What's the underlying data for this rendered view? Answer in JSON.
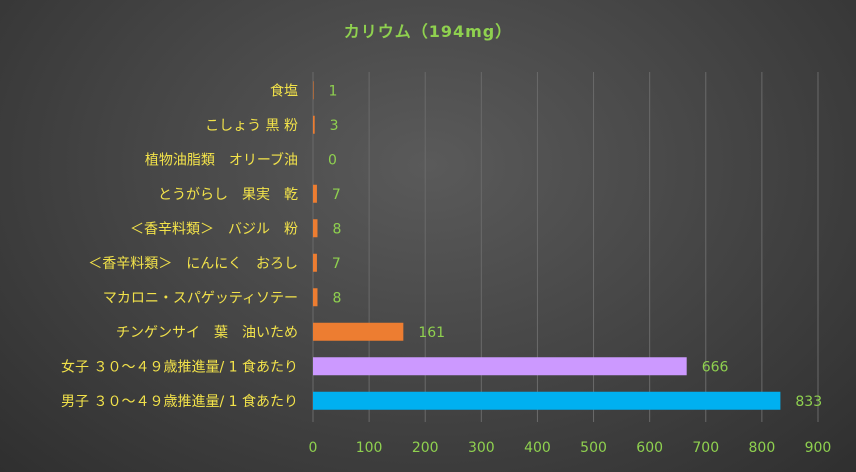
{
  "chart_data": {
    "type": "bar",
    "orientation": "horizontal",
    "title": "カリウム（194mg）",
    "categories": [
      "食塩",
      "こしょう 黒 粉",
      "植物油脂類　オリーブ油",
      "とうがらし　果実　乾",
      "＜香辛料類＞　バジル　粉",
      "＜香辛料類＞　にんにく　おろし",
      "マカロニ・スパゲッティソテー",
      "チンゲンサイ　葉　油いため",
      "女子 ３０～４９歳推進量/ 1 食あたり",
      "男子 ３０～４９歳推進量/ 1 食あたり"
    ],
    "values": [
      1,
      3,
      0,
      7,
      8,
      7,
      8,
      161,
      666,
      833
    ],
    "value_labels": [
      "1",
      "3",
      "0",
      "7",
      "8",
      "7",
      "8",
      "161",
      "666",
      "833"
    ],
    "bar_colors": [
      "#ed7d31",
      "#ed7d31",
      "#ed7d31",
      "#ed7d31",
      "#ed7d31",
      "#ed7d31",
      "#ed7d31",
      "#ed7d31",
      "#cc99ff",
      "#00b0f0"
    ],
    "xlim": [
      0,
      900
    ],
    "xticks": [
      "0",
      "100",
      "200",
      "300",
      "400",
      "500",
      "600",
      "700",
      "800",
      "900"
    ],
    "xtick_values": [
      0,
      100,
      200,
      300,
      400,
      500,
      600,
      700,
      800,
      900
    ],
    "grid": "vertical",
    "legend": "none"
  }
}
